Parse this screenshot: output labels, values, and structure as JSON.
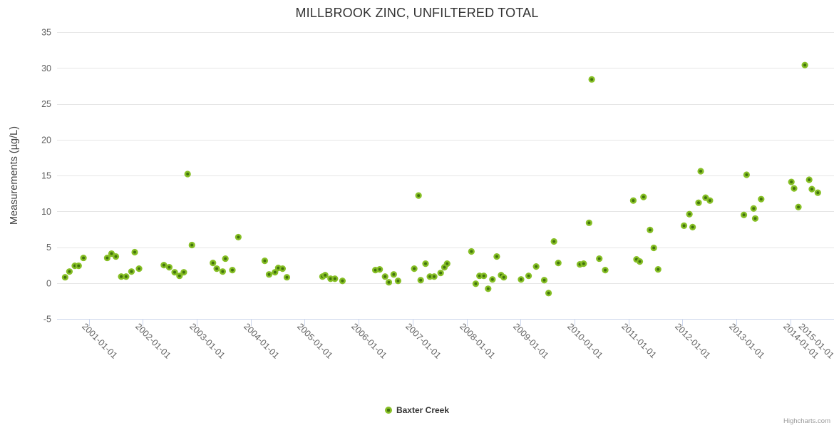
{
  "credit": "Highcharts.com",
  "chart_data": {
    "type": "scatter",
    "title": "MILLBROOK ZINC, UNFILTERED TOTAL",
    "xlabel": "",
    "ylabel": "Measurements (µg/L)",
    "xlim": [
      2000.41,
      2014.81
    ],
    "ylim": [
      -5,
      35
    ],
    "grid": "horizontal-only",
    "legend_position": "bottom-center",
    "x_tick_labels": [
      "2001-01-01",
      "2002-01-01",
      "2003-01-01",
      "2004-01-01",
      "2005-01-01",
      "2006-01-01",
      "2007-01-01",
      "2008-01-01",
      "2009-01-01",
      "2010-01-01",
      "2011-01-01",
      "2012-01-01",
      "2013-01-01",
      "2014-01-01",
      "2015-01-01"
    ],
    "y_ticks": [
      35,
      30,
      25,
      20,
      15,
      10,
      5,
      0,
      -5
    ],
    "colors": {
      "title": "#333333",
      "axis_label": "#606060",
      "axis_title": "#444444",
      "gridline": "#e6e6e6",
      "axis_line": "#ccd6eb",
      "marker_outer": "#86BF25",
      "marker_inner": "#41720D",
      "legend_text": "#333333",
      "credit": "#999999"
    },
    "series": [
      {
        "name": "Baxter Creek",
        "points": [
          [
            2000.56,
            0.8
          ],
          [
            2000.64,
            1.6
          ],
          [
            2000.74,
            2.4
          ],
          [
            2000.81,
            2.4
          ],
          [
            2000.9,
            3.5
          ],
          [
            2001.34,
            3.5
          ],
          [
            2001.42,
            4.1
          ],
          [
            2001.5,
            3.7
          ],
          [
            2001.6,
            0.9
          ],
          [
            2001.69,
            0.9
          ],
          [
            2001.79,
            1.6
          ],
          [
            2001.85,
            4.3
          ],
          [
            2001.93,
            2.0
          ],
          [
            2002.39,
            2.5
          ],
          [
            2002.49,
            2.2
          ],
          [
            2002.59,
            1.5
          ],
          [
            2002.68,
            1.0
          ],
          [
            2002.76,
            1.5
          ],
          [
            2002.83,
            15.2
          ],
          [
            2002.91,
            5.3
          ],
          [
            2003.3,
            2.8
          ],
          [
            2003.37,
            2.0
          ],
          [
            2003.48,
            1.6
          ],
          [
            2003.53,
            3.4
          ],
          [
            2003.66,
            1.8
          ],
          [
            2003.77,
            6.4
          ],
          [
            2004.26,
            3.1
          ],
          [
            2004.34,
            1.2
          ],
          [
            2004.45,
            1.5
          ],
          [
            2004.51,
            2.1
          ],
          [
            2004.59,
            2.0
          ],
          [
            2004.67,
            0.8
          ],
          [
            2005.33,
            0.9
          ],
          [
            2005.38,
            1.1
          ],
          [
            2005.48,
            0.6
          ],
          [
            2005.56,
            0.6
          ],
          [
            2005.7,
            0.3
          ],
          [
            2006.31,
            1.8
          ],
          [
            2006.39,
            1.9
          ],
          [
            2006.49,
            0.9
          ],
          [
            2006.56,
            0.1
          ],
          [
            2006.65,
            1.2
          ],
          [
            2006.73,
            0.3
          ],
          [
            2007.03,
            2.0
          ],
          [
            2007.11,
            12.2
          ],
          [
            2007.15,
            0.4
          ],
          [
            2007.24,
            2.7
          ],
          [
            2007.32,
            0.9
          ],
          [
            2007.4,
            0.9
          ],
          [
            2007.52,
            1.4
          ],
          [
            2007.59,
            2.2
          ],
          [
            2007.64,
            2.7
          ],
          [
            2008.09,
            4.4
          ],
          [
            2008.17,
            -0.1
          ],
          [
            2008.24,
            1.0
          ],
          [
            2008.32,
            1.0
          ],
          [
            2008.4,
            -0.8
          ],
          [
            2008.48,
            0.5
          ],
          [
            2008.56,
            3.7
          ],
          [
            2008.64,
            1.1
          ],
          [
            2008.69,
            0.8
          ],
          [
            2009.01,
            0.5
          ],
          [
            2009.15,
            1.0
          ],
          [
            2009.29,
            2.3
          ],
          [
            2009.44,
            0.4
          ],
          [
            2009.52,
            -1.4
          ],
          [
            2009.62,
            5.8
          ],
          [
            2009.7,
            2.8
          ],
          [
            2010.1,
            2.6
          ],
          [
            2010.17,
            2.7
          ],
          [
            2010.27,
            8.4
          ],
          [
            2010.32,
            28.4
          ],
          [
            2010.46,
            3.4
          ],
          [
            2010.57,
            1.8
          ],
          [
            2011.09,
            11.5
          ],
          [
            2011.15,
            3.3
          ],
          [
            2011.21,
            3.0
          ],
          [
            2011.28,
            12.0
          ],
          [
            2011.4,
            7.4
          ],
          [
            2011.47,
            4.9
          ],
          [
            2011.55,
            1.9
          ],
          [
            2012.03,
            8.0
          ],
          [
            2012.13,
            9.6
          ],
          [
            2012.19,
            7.8
          ],
          [
            2012.3,
            11.2
          ],
          [
            2012.34,
            15.6
          ],
          [
            2012.43,
            11.9
          ],
          [
            2012.51,
            11.5
          ],
          [
            2013.14,
            9.5
          ],
          [
            2013.19,
            15.1
          ],
          [
            2013.32,
            10.4
          ],
          [
            2013.35,
            9.0
          ],
          [
            2013.46,
            11.7
          ],
          [
            2014.02,
            14.1
          ],
          [
            2014.07,
            13.2
          ],
          [
            2014.15,
            10.6
          ],
          [
            2014.27,
            30.4
          ],
          [
            2014.35,
            14.4
          ],
          [
            2014.4,
            13.1
          ],
          [
            2014.51,
            12.6
          ]
        ]
      }
    ]
  }
}
